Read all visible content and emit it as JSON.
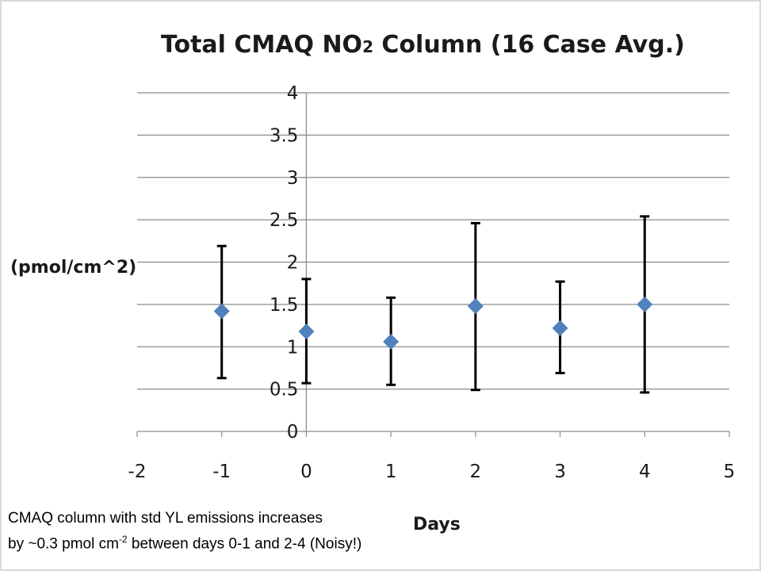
{
  "chart_data": {
    "type": "scatter",
    "title": "Total CMAQ NO",
    "title_subscript": "2",
    "title_suffix": " Column  (16 Case Avg.)",
    "xlabel": "Days",
    "ylabel": "(pmol/cm^2)",
    "xlim": [
      -2,
      5
    ],
    "ylim": [
      0,
      4
    ],
    "x_ticks": [
      -2,
      -1,
      0,
      1,
      2,
      3,
      4,
      5
    ],
    "y_ticks": [
      0,
      0.5,
      1,
      1.5,
      2,
      2.5,
      3,
      3.5,
      4
    ],
    "y_tick_labels": [
      "0",
      "0.5",
      "1",
      "1.5",
      "2",
      "2.5",
      "3",
      "3.5",
      "4"
    ],
    "grid": "horizontal",
    "marker": "diamond",
    "color": "#4f81bd",
    "errorbar_color": "#000000",
    "points": [
      {
        "x": -1,
        "y": 1.42,
        "err_low": 0.63,
        "err_high": 2.19
      },
      {
        "x": 0,
        "y": 1.18,
        "err_low": 0.57,
        "err_high": 1.8
      },
      {
        "x": 1,
        "y": 1.06,
        "err_low": 0.55,
        "err_high": 1.58
      },
      {
        "x": 2,
        "y": 1.48,
        "err_low": 0.49,
        "err_high": 2.46
      },
      {
        "x": 3,
        "y": 1.22,
        "err_low": 0.69,
        "err_high": 1.77
      },
      {
        "x": 4,
        "y": 1.5,
        "err_low": 0.46,
        "err_high": 2.54
      }
    ]
  },
  "caption": {
    "line1": "CMAQ column with std YL emissions increases",
    "line2_before": "by ~0.3 pmol cm",
    "line2_sup": "-2",
    "line2_after": " between days 0-1 and 2-4 (Noisy!)"
  }
}
